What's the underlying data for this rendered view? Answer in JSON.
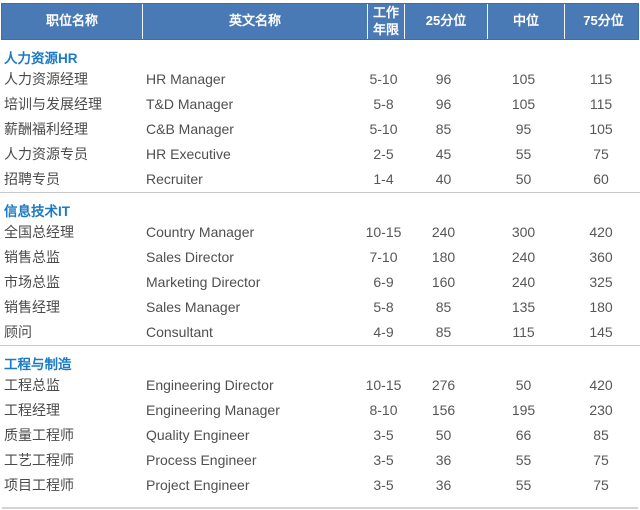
{
  "table": {
    "columns": [
      "职位名称",
      "英文名称",
      "工作\n年限",
      "25分位",
      "中位",
      "75分位"
    ],
    "header_bg_color": "#4a7ab5",
    "section_title_color": "#1a7ac5",
    "sections": [
      {
        "id": "hr",
        "title": "人力资源HR",
        "rows": [
          [
            "人力资源经理",
            "HR Manager",
            "5-10",
            "96",
            "105",
            "115"
          ],
          [
            "培训与发展经理",
            "T&D Manager",
            "5-8",
            "96",
            "105",
            "115"
          ],
          [
            "薪酬福利经理",
            "C&B Manager",
            "5-10",
            "85",
            "95",
            "105"
          ],
          [
            "人力资源专员",
            "HR Executive",
            "2-5",
            "45",
            "55",
            "75"
          ],
          [
            "招聘专员",
            "Recruiter",
            "1-4",
            "40",
            "50",
            "60"
          ]
        ]
      },
      {
        "id": "it",
        "title": "信息技术IT",
        "rows": [
          [
            "全国总经理",
            "Country Manager",
            "10-15",
            "240",
            "300",
            "420"
          ],
          [
            "销售总监",
            "Sales Director",
            "7-10",
            "180",
            "240",
            "360"
          ],
          [
            "市场总监",
            "Marketing Director",
            "6-9",
            "160",
            "240",
            "325"
          ],
          [
            "销售经理",
            "Sales Manager",
            "5-8",
            "85",
            "135",
            "180"
          ],
          [
            "顾问",
            "Consultant",
            "4-9",
            "85",
            "115",
            "145"
          ]
        ]
      },
      {
        "id": "engineering",
        "title": "工程与制造",
        "rows": [
          [
            "工程总监",
            "Engineering Director",
            "10-15",
            "276",
            "50",
            "420"
          ],
          [
            "工程经理",
            "Engineering Manager",
            "8-10",
            "156",
            "195",
            "230"
          ],
          [
            "质量工程师",
            "Quality Engineer",
            "3-5",
            "50",
            "66",
            "85"
          ],
          [
            "工艺工程师",
            "Process Engineer",
            "3-5",
            "36",
            "55",
            "75"
          ],
          [
            "项目工程师",
            "Project Engineer",
            "3-5",
            "36",
            "55",
            "75"
          ]
        ]
      }
    ]
  }
}
